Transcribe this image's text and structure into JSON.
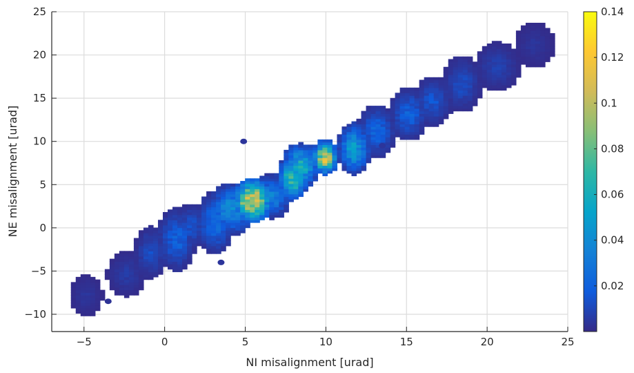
{
  "chart_data": {
    "type": "heatmap",
    "title": "",
    "xlabel": "NI misalignment [urad]",
    "ylabel": "NE misalignment [urad]",
    "xlim": [
      -7,
      25
    ],
    "ylim": [
      -12,
      25
    ],
    "x_ticks": [
      -5,
      0,
      5,
      10,
      15,
      20,
      25
    ],
    "x_tick_labels": [
      "−5",
      "0",
      "5",
      "10",
      "15",
      "20",
      "25"
    ],
    "y_ticks": [
      -10,
      -5,
      0,
      5,
      10,
      15,
      20,
      25
    ],
    "y_tick_labels": [
      "−10",
      "−5",
      "0",
      "5",
      "10",
      "15",
      "20",
      "25"
    ],
    "grid": true,
    "colormap": "parula",
    "colorbar": {
      "range": [
        0,
        0.14
      ],
      "ticks": [
        0.02,
        0.04,
        0.06,
        0.08,
        0.1,
        0.12,
        0.14
      ],
      "tick_labels": [
        "0.02",
        "0.04",
        "0.06",
        "0.08",
        "0.1",
        "0.12",
        "0.14"
      ]
    },
    "cell_size": 0.3,
    "blobs": [
      {
        "x": -5.0,
        "y": -8.0,
        "sx": 0.5,
        "sy": 1.2,
        "v": 0.004
      },
      {
        "x": -2.5,
        "y": -5.5,
        "sx": 0.6,
        "sy": 1.3,
        "v": 0.006
      },
      {
        "x": -1.0,
        "y": -3.0,
        "sx": 0.5,
        "sy": 1.5,
        "v": 0.012
      },
      {
        "x": 0.6,
        "y": -1.5,
        "sx": 0.6,
        "sy": 1.8,
        "v": 0.02
      },
      {
        "x": 1.5,
        "y": 0.0,
        "sx": 0.5,
        "sy": 1.3,
        "v": 0.014
      },
      {
        "x": 3.0,
        "y": 0.5,
        "sx": 0.6,
        "sy": 1.8,
        "v": 0.025
      },
      {
        "x": 4.0,
        "y": 2.0,
        "sx": 0.7,
        "sy": 1.5,
        "v": 0.04
      },
      {
        "x": 5.3,
        "y": 3.0,
        "sx": 0.6,
        "sy": 1.3,
        "v": 0.12
      },
      {
        "x": 6.5,
        "y": 3.5,
        "sx": 0.6,
        "sy": 1.3,
        "v": 0.035
      },
      {
        "x": 7.8,
        "y": 5.5,
        "sx": 0.5,
        "sy": 1.2,
        "v": 0.08
      },
      {
        "x": 8.3,
        "y": 7.0,
        "sx": 0.6,
        "sy": 1.3,
        "v": 0.06
      },
      {
        "x": 9.8,
        "y": 8.0,
        "sx": 0.4,
        "sy": 1.0,
        "v": 0.11
      },
      {
        "x": 11.6,
        "y": 9.0,
        "sx": 0.5,
        "sy": 1.5,
        "v": 0.05
      },
      {
        "x": 13.0,
        "y": 11.0,
        "sx": 0.6,
        "sy": 1.5,
        "v": 0.022
      },
      {
        "x": 15.0,
        "y": 13.0,
        "sx": 0.6,
        "sy": 1.5,
        "v": 0.02
      },
      {
        "x": 16.5,
        "y": 14.5,
        "sx": 0.6,
        "sy": 1.4,
        "v": 0.015
      },
      {
        "x": 18.3,
        "y": 16.5,
        "sx": 0.6,
        "sy": 1.6,
        "v": 0.012
      },
      {
        "x": 20.5,
        "y": 18.5,
        "sx": 0.7,
        "sy": 1.4,
        "v": 0.008
      },
      {
        "x": 22.8,
        "y": 21.0,
        "sx": 0.6,
        "sy": 1.3,
        "v": 0.004
      }
    ],
    "outliers": [
      {
        "x": 4.9,
        "y": 10.0,
        "v": 0.004
      },
      {
        "x": 3.5,
        "y": -4.0,
        "v": 0.004
      },
      {
        "x": 13.5,
        "y": 9.5,
        "v": 0.004
      },
      {
        "x": -3.5,
        "y": -8.5,
        "v": 0.003
      }
    ]
  }
}
